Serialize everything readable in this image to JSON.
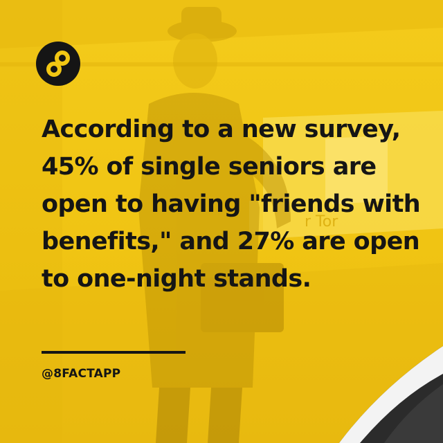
{
  "post": {
    "headline": "According to a new survey, 45% of single seniors are open to having \"friends with benefits,\" and 27% are open to one-night stands.",
    "handle": "@8FACTAPP"
  },
  "brand": {
    "logo_icon": "infinity-eight-icon",
    "background_color": "#f2c713",
    "text_color": "#151515"
  },
  "background_image": {
    "sign_text": "r Tor"
  }
}
